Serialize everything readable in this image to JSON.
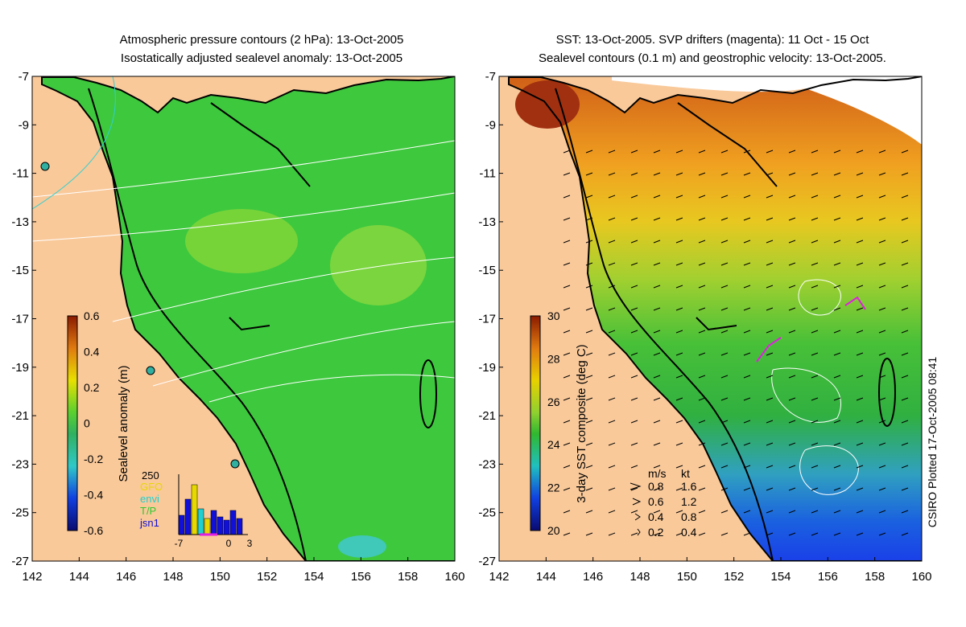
{
  "left_panel": {
    "title_line1": "Atmospheric pressure contours (2 hPa): 13-Oct-2005",
    "title_line2": "Isostatically adjusted sealevel anomaly: 13-Oct-2005",
    "colorbar_label": "Sealevel anomaly (m)",
    "colorbar_ticks": [
      "0.6",
      "0.4",
      "0.2",
      "0",
      "-0.2",
      "-0.4",
      "-0.6"
    ],
    "inset": {
      "ytick": "250",
      "legend": [
        {
          "label": "GFO",
          "color": "#e6d800"
        },
        {
          "label": "envi",
          "color": "#20d0d0"
        },
        {
          "label": "T/P",
          "color": "#30c830"
        },
        {
          "label": "jsn1",
          "color": "#1010d8"
        }
      ],
      "xticks": [
        "-7",
        "0",
        "3"
      ]
    }
  },
  "right_panel": {
    "title_line1": "SST: 13-Oct-2005. SVP drifters (magenta): 11 Oct - 15 Oct",
    "title_line2": "Sealevel contours (0.1 m) and geostrophic velocity: 13-Oct-2005.",
    "colorbar_label": "3-day SST composite (deg C)",
    "colorbar_ticks": [
      "30",
      "28",
      "26",
      "24",
      "22",
      "20"
    ],
    "velocity_legend": {
      "header_ms": "m/s",
      "header_kt": "kt",
      "rows": [
        {
          "ms": "0.8",
          "kt": "1.6"
        },
        {
          "ms": "0.6",
          "kt": "1.2"
        },
        {
          "ms": "0.4",
          "kt": "0.8"
        },
        {
          "ms": "0.2",
          "kt": "0.4"
        }
      ]
    }
  },
  "axes": {
    "lat_ticks": [
      "-7",
      "-9",
      "-11",
      "-13",
      "-15",
      "-17",
      "-19",
      "-21",
      "-23",
      "-25",
      "-27"
    ],
    "lon_ticks": [
      "142",
      "144",
      "146",
      "148",
      "150",
      "152",
      "154",
      "156",
      "158",
      "160"
    ]
  },
  "credit": "CSIRO Plotted 17-Oct-2005 08:41",
  "colors": {
    "land": "#f9c99a",
    "ocean_mean": "#3ec83e",
    "coast": "#000000"
  }
}
